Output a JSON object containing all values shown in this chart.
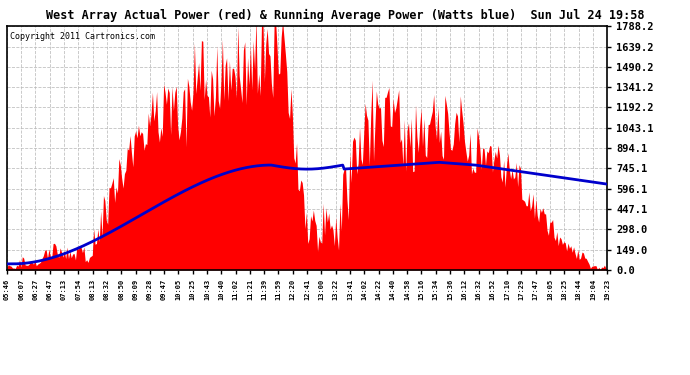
{
  "title": "West Array Actual Power (red) & Running Average Power (Watts blue)  Sun Jul 24 19:58",
  "copyright": "Copyright 2011 Cartronics.com",
  "ymax": 1788.2,
  "yticks": [
    0.0,
    149.0,
    298.0,
    447.1,
    596.1,
    745.1,
    894.1,
    1043.1,
    1192.2,
    1341.2,
    1490.2,
    1639.2,
    1788.2
  ],
  "background_color": "#ffffff",
  "plot_bg_color": "#ffffff",
  "grid_color": "#bbbbbb",
  "bar_color": "#ff0000",
  "avg_color": "#0000cc",
  "x_labels": [
    "05:46",
    "06:07",
    "06:27",
    "06:47",
    "07:13",
    "07:54",
    "08:13",
    "08:32",
    "08:50",
    "09:09",
    "09:28",
    "09:47",
    "10:05",
    "10:25",
    "10:43",
    "10:40",
    "11:02",
    "11:21",
    "11:39",
    "11:59",
    "12:20",
    "12:41",
    "13:00",
    "13:22",
    "13:41",
    "14:02",
    "14:22",
    "14:40",
    "14:58",
    "15:16",
    "15:34",
    "15:36",
    "16:12",
    "16:32",
    "16:52",
    "17:10",
    "17:29",
    "17:47",
    "18:05",
    "18:25",
    "18:44",
    "19:04",
    "19:23"
  ]
}
